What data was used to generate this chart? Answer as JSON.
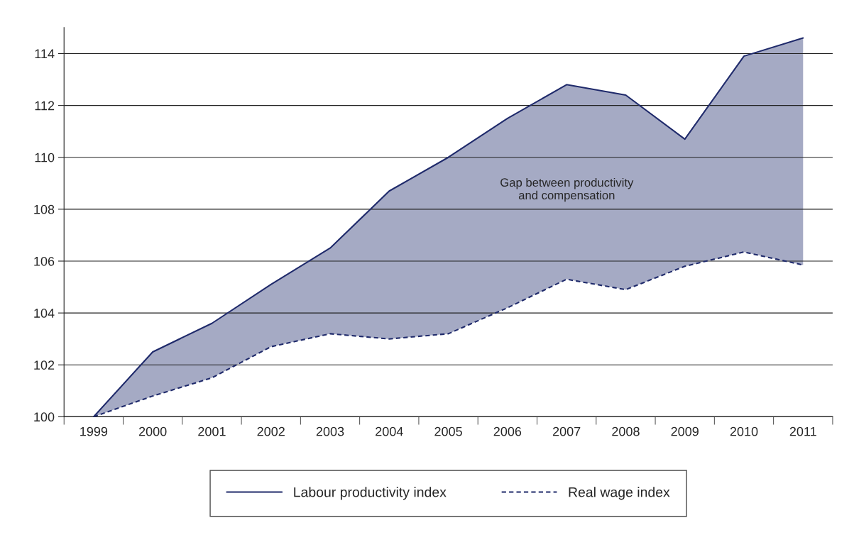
{
  "chart_data": {
    "type": "line",
    "categories": [
      "1999",
      "2000",
      "2001",
      "2002",
      "2003",
      "2004",
      "2005",
      "2006",
      "2007",
      "2008",
      "2009",
      "2010",
      "2011"
    ],
    "series": [
      {
        "name": "Labour productivity index",
        "color": "#1f2a6b",
        "line_style": "solid",
        "values": [
          100,
          102.5,
          103.6,
          105.1,
          106.5,
          108.7,
          110.0,
          111.5,
          112.8,
          112.4,
          110.7,
          113.9,
          114.6
        ],
        "lower": [
          100,
          100.8,
          101.5,
          102.7,
          103.2,
          103.0,
          103.2,
          104.2,
          105.3,
          104.9,
          105.8,
          106.35,
          105.85
        ],
        "upper": [
          100,
          102.5,
          103.6,
          105.1,
          106.5,
          108.7,
          110.0,
          111.5,
          112.8,
          112.4,
          110.7,
          113.9,
          114.6
        ]
      },
      {
        "name": "Real wage index",
        "color": "#1f2a6b",
        "line_style": "dashed",
        "values": [
          100,
          100.8,
          101.5,
          102.7,
          103.2,
          103.0,
          103.2,
          104.2,
          105.3,
          104.9,
          105.8,
          106.35,
          105.85
        ]
      }
    ],
    "ylim": [
      100,
      115
    ],
    "yticks": [
      100,
      102,
      104,
      106,
      108,
      110,
      112,
      114
    ],
    "grid": "y",
    "legend": "bottom",
    "marker": "none",
    "annotations": [
      "Gap between productivity\nand compensation"
    ]
  }
}
